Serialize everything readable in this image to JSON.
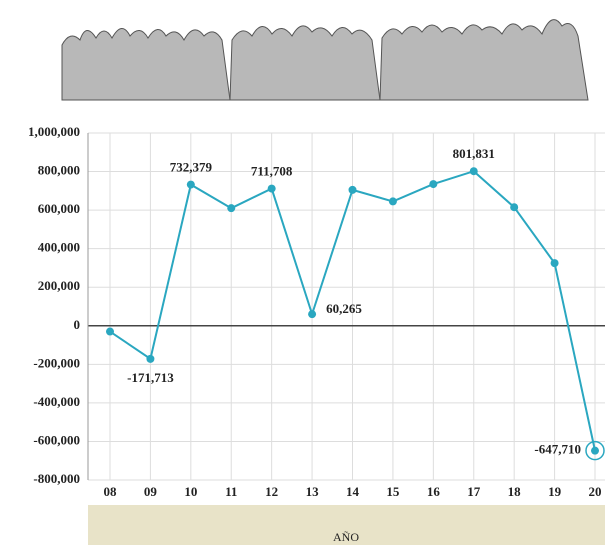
{
  "chart_data": {
    "type": "line",
    "x_label": "AÑO",
    "categories": [
      "08",
      "09",
      "10",
      "11",
      "12",
      "13",
      "14",
      "15",
      "16",
      "17",
      "18",
      "19",
      "20"
    ],
    "series": [
      {
        "color": "#2aa7c0",
        "values": [
          -30000,
          -171713,
          732379,
          610000,
          711708,
          60265,
          705000,
          645000,
          735000,
          801831,
          615000,
          325000,
          -647710
        ],
        "value_labels": [
          null,
          "-171,713",
          "732,379",
          null,
          "711,708",
          "60,265",
          null,
          null,
          null,
          "801,831",
          null,
          null,
          "-647,710"
        ]
      }
    ],
    "ylim": [
      -800000,
      1000000
    ],
    "yticks": [
      {
        "value": -800000,
        "label": "-800,000"
      },
      {
        "value": -600000,
        "label": "-600,000"
      },
      {
        "value": -400000,
        "label": "-400,000"
      },
      {
        "value": -200000,
        "label": "-200,000"
      },
      0,
      {
        "value": 200000,
        "label": "200,000"
      },
      {
        "value": 400000,
        "label": "400,000"
      },
      {
        "value": 600000,
        "label": "600,000"
      },
      {
        "value": 800000,
        "label": "800,000"
      },
      {
        "value": 1000000,
        "label": "1,000,000"
      }
    ],
    "grid": true
  }
}
